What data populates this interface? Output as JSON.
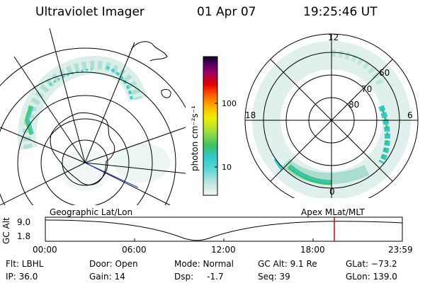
{
  "header": {
    "instrument": "Ultraviolet Imager",
    "date": "01 Apr 07",
    "time": "19:25:46 UT"
  },
  "geo_map": {
    "label": "Geographic Lat/Lon"
  },
  "apex_map": {
    "label": "Apex  MLat/MLT",
    "mlt_labels": [
      "12",
      "18",
      "6",
      "0"
    ],
    "lat_labels": [
      "60",
      "70",
      "80"
    ]
  },
  "colorbar": {
    "unit_label": "photon cm⁻²s⁻¹",
    "tick_labels": [
      "100",
      "10"
    ]
  },
  "altitude_plot": {
    "axis_label": "GC Alt",
    "y_ticks": [
      "9.0",
      "1.8"
    ],
    "x_ticks": [
      "00:00",
      "06:00",
      "12:00",
      "18:00",
      "23:59"
    ],
    "current_time_hours": 19.43
  },
  "info": {
    "flt": "Flt: LBHL",
    "ip": "IP: 36.0",
    "door": "Door: Open",
    "gain": "Gain: 14",
    "mode": "Mode: Normal",
    "dsp": "Dsp:     -1.7",
    "gcalt": "GC Alt: 9.1 Re",
    "seq": "Seq: 39",
    "glat": "GLat: −73.2",
    "glon": "GLon: 139.0"
  },
  "colors": {
    "marker": "#e00000",
    "aurora_cyan": "#30c8c8",
    "aurora_green": "#40c060"
  }
}
